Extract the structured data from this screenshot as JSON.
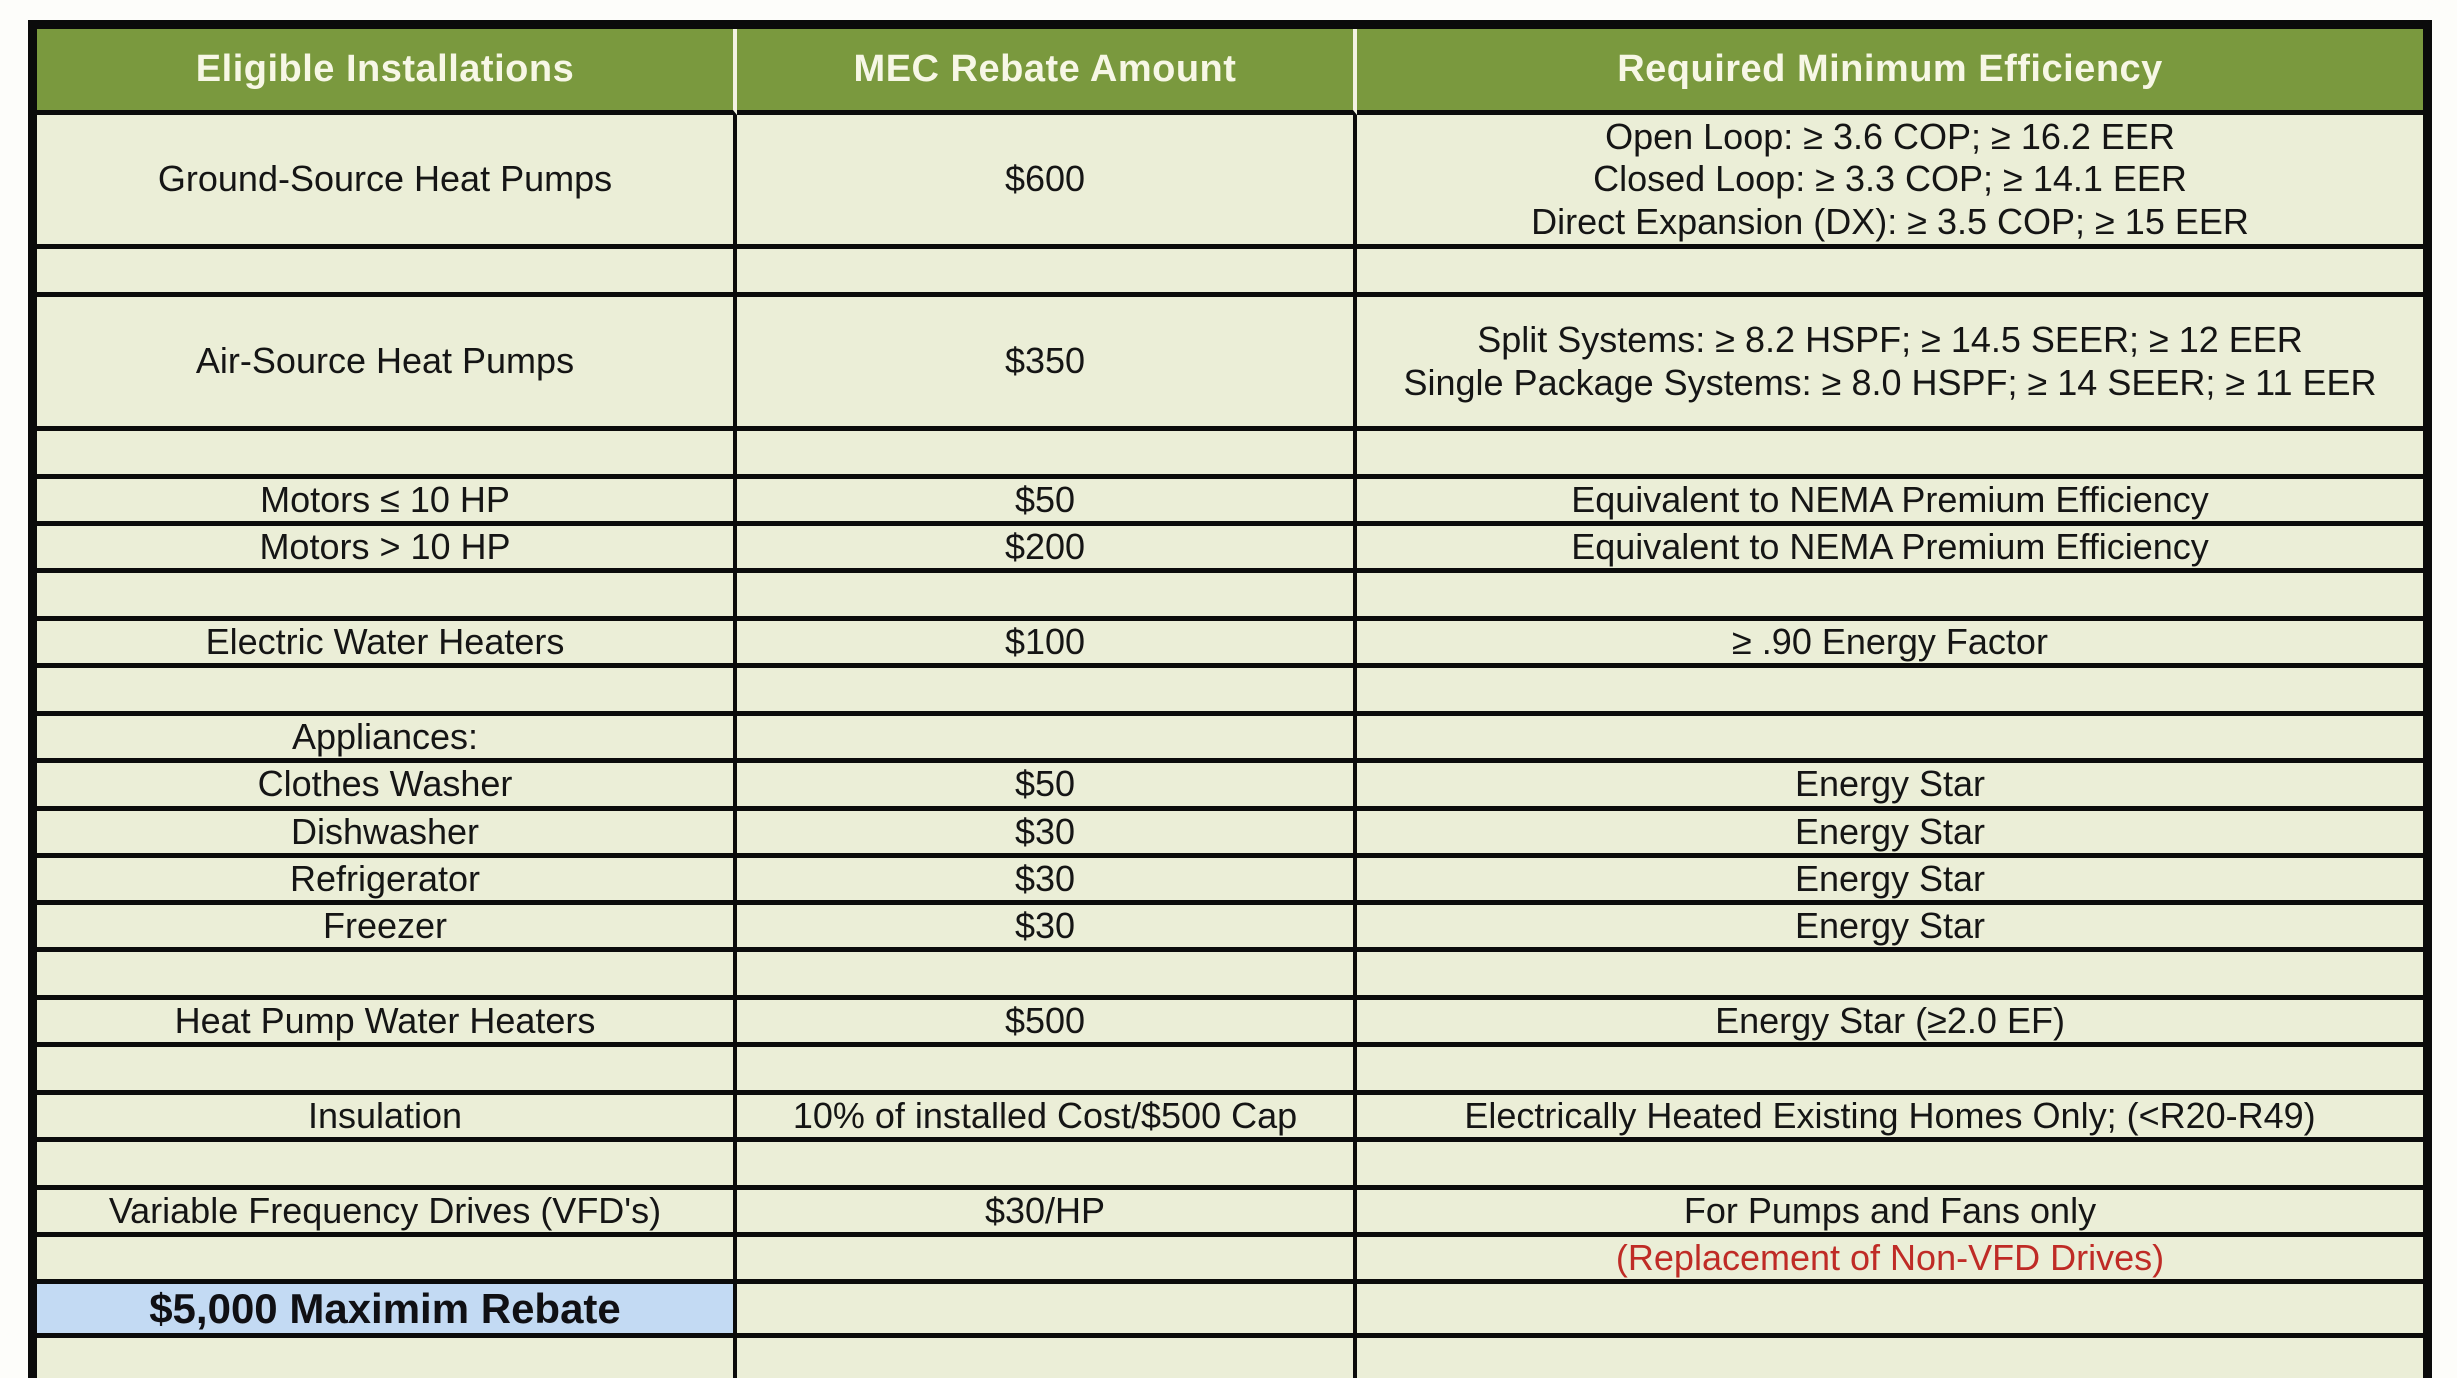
{
  "table": {
    "headers": [
      "Eligible Installations",
      "MEC Rebate Amount",
      "Required Minimum Efficiency"
    ],
    "rows": [
      {
        "type": "data",
        "size": "tall",
        "installation": "Ground-Source Heat Pumps",
        "rebate": "$600",
        "efficiency": [
          "Open Loop: ≥ 3.6 COP; ≥ 16.2 EER",
          "Closed Loop: ≥ 3.3 COP; ≥ 14.1 EER",
          "Direct Expansion (DX): ≥ 3.5 COP; ≥ 15 EER"
        ]
      },
      {
        "type": "spacer",
        "installation": "",
        "rebate": "",
        "efficiency": ""
      },
      {
        "type": "data",
        "size": "tall",
        "installation": "Air-Source Heat Pumps",
        "rebate": "$350",
        "efficiency": [
          "Split Systems: ≥ 8.2 HSPF; ≥ 14.5 SEER; ≥ 12 EER",
          "Single Package Systems: ≥ 8.0 HSPF; ≥ 14 SEER; ≥ 11 EER"
        ]
      },
      {
        "type": "spacer",
        "installation": "",
        "rebate": "",
        "efficiency": ""
      },
      {
        "type": "data",
        "installation": "Motors ≤ 10 HP",
        "rebate": "$50",
        "efficiency": "Equivalent to NEMA Premium Efficiency"
      },
      {
        "type": "data",
        "installation": "Motors > 10 HP",
        "rebate": "$200",
        "efficiency": "Equivalent to NEMA Premium Efficiency"
      },
      {
        "type": "spacer",
        "installation": "",
        "rebate": "",
        "efficiency": ""
      },
      {
        "type": "data",
        "installation": "Electric Water Heaters",
        "rebate": "$100",
        "efficiency": "≥ .90 Energy Factor"
      },
      {
        "type": "spacer",
        "installation": "",
        "rebate": "",
        "efficiency": ""
      },
      {
        "type": "data",
        "installation": "Appliances:",
        "rebate": "",
        "efficiency": ""
      },
      {
        "type": "data",
        "installation": "Clothes Washer",
        "rebate": "$50",
        "efficiency": "Energy Star"
      },
      {
        "type": "data",
        "installation": "Dishwasher",
        "rebate": "$30",
        "efficiency": "Energy Star"
      },
      {
        "type": "data",
        "installation": "Refrigerator",
        "rebate": "$30",
        "efficiency": "Energy Star"
      },
      {
        "type": "data",
        "installation": "Freezer",
        "rebate": "$30",
        "efficiency": "Energy Star"
      },
      {
        "type": "spacer",
        "installation": "",
        "rebate": "",
        "efficiency": ""
      },
      {
        "type": "data",
        "installation": "Heat Pump Water Heaters",
        "rebate": "$500",
        "efficiency": "Energy Star (≥2.0 EF)"
      },
      {
        "type": "spacer",
        "installation": "",
        "rebate": "",
        "efficiency": ""
      },
      {
        "type": "data",
        "installation": "Insulation",
        "rebate": "10% of installed Cost/$500 Cap",
        "efficiency": "Electrically Heated Existing Homes Only; (<R20-R49)"
      },
      {
        "type": "spacer",
        "installation": "",
        "rebate": "",
        "efficiency": ""
      },
      {
        "type": "data",
        "installation": "Variable Frequency Drives (VFD's)",
        "rebate": "$30/HP",
        "efficiency": "For Pumps and Fans only"
      },
      {
        "type": "data",
        "installation": "",
        "rebate": "",
        "efficiency": "(Replacement of Non-VFD Drives)",
        "efficiency_color": "red"
      },
      {
        "type": "data",
        "installation": "$5,000 Maximim Rebate",
        "rebate": "",
        "efficiency": "",
        "installation_highlight": true
      },
      {
        "type": "spacer",
        "installation": "",
        "rebate": "",
        "efficiency": ""
      }
    ],
    "colors": {
      "header_bg": "#7a993e",
      "header_text": "#f7f7e6",
      "body_bg": "#ebeed7",
      "grid": "#0b0b0b",
      "highlight_bg": "#c3daf3",
      "red_text": "#bf2b26",
      "body_text": "#151515"
    }
  }
}
